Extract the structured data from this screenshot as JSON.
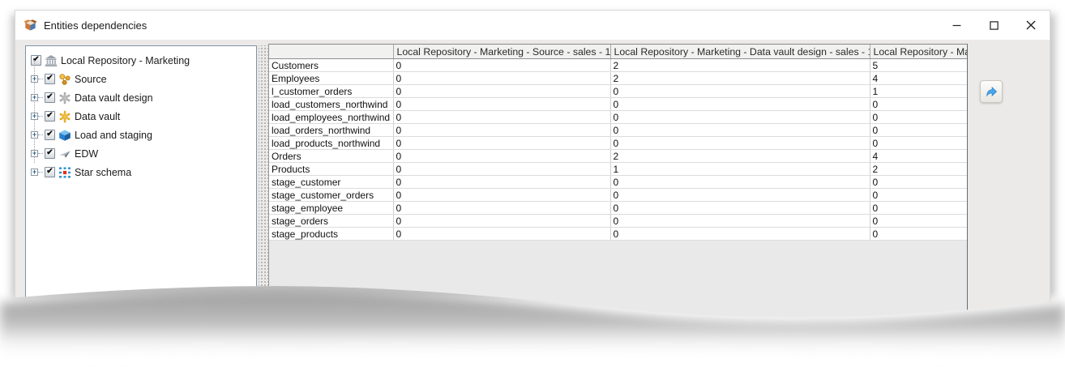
{
  "window": {
    "title": "Entities dependencies",
    "controls": [
      {
        "name": "minimize",
        "icon": "minimize-icon"
      },
      {
        "name": "maximize",
        "icon": "maximize-icon"
      },
      {
        "name": "close",
        "icon": "close-icon"
      }
    ]
  },
  "tree": {
    "root": {
      "label": "Local Repository - Marketing",
      "checked": true,
      "icon": "icon-repository"
    },
    "items": [
      {
        "label": "Source",
        "checked": true,
        "icon": "icon-source"
      },
      {
        "label": "Data vault design",
        "checked": true,
        "icon": "icon-data-vault-design"
      },
      {
        "label": "Data vault",
        "checked": true,
        "icon": "icon-data-vault"
      },
      {
        "label": "Load and staging",
        "checked": true,
        "icon": "icon-load-staging"
      },
      {
        "label": "EDW",
        "checked": true,
        "icon": "icon-edw"
      },
      {
        "label": "Star schema",
        "checked": true,
        "icon": "icon-star-schema"
      }
    ]
  },
  "table": {
    "columns": [
      "",
      "Local Repository - Marketing - Source - sales - 1",
      "Local Repository - Marketing - Data vault design - sales - 1",
      "Local Repository - Ma"
    ],
    "rows": [
      {
        "name": "Customers",
        "values": [
          "0",
          "2",
          "5"
        ]
      },
      {
        "name": "Employees",
        "values": [
          "0",
          "2",
          "4"
        ]
      },
      {
        "name": "l_customer_orders",
        "values": [
          "0",
          "0",
          "1"
        ]
      },
      {
        "name": "load_customers_northwind",
        "values": [
          "0",
          "0",
          "0"
        ]
      },
      {
        "name": "load_employees_northwind",
        "values": [
          "0",
          "0",
          "0"
        ]
      },
      {
        "name": "load_orders_northwind",
        "values": [
          "0",
          "0",
          "0"
        ]
      },
      {
        "name": "load_products_northwind",
        "values": [
          "0",
          "0",
          "0"
        ]
      },
      {
        "name": "Orders",
        "values": [
          "0",
          "2",
          "4"
        ]
      },
      {
        "name": "Products",
        "values": [
          "0",
          "1",
          "2"
        ]
      },
      {
        "name": "stage_customer",
        "values": [
          "0",
          "0",
          "0"
        ]
      },
      {
        "name": "stage_customer_orders",
        "values": [
          "0",
          "0",
          "0"
        ]
      },
      {
        "name": "stage_employee",
        "values": [
          "0",
          "0",
          "0"
        ]
      },
      {
        "name": "stage_orders",
        "values": [
          "0",
          "0",
          "0"
        ]
      },
      {
        "name": "stage_products",
        "values": [
          "0",
          "0",
          "0"
        ]
      }
    ]
  },
  "toolbar": {
    "export_button_icon": "export-arrow-icon"
  },
  "colors": {
    "accent_blue": "#4aa3ec",
    "dialog_bg": "#eceae8",
    "titlebar_bg": "#ffffff",
    "panel_border": "#8193a3"
  }
}
